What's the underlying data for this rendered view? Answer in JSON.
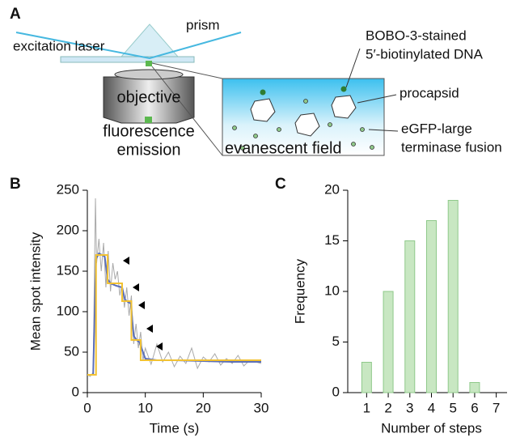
{
  "panel_labels": [
    "A",
    "B",
    "C"
  ],
  "diagram": {
    "prism": "prism",
    "laser": "excitation laser",
    "objective": "objective",
    "emission": [
      "fluorescence",
      "emission"
    ],
    "dna": [
      "BOBO-3-stained",
      "5′-biotinylated DNA"
    ],
    "procapsid": "procapsid",
    "fusion": [
      "eGFP-large",
      "terminase fusion"
    ],
    "field": "evanescent field"
  },
  "chart_data": [
    {
      "type": "line",
      "xlabel": "Time (s)",
      "ylabel": "Mean spot intensity",
      "xlim": [
        0,
        30
      ],
      "ylim": [
        0,
        250
      ],
      "xticks": [
        0,
        10,
        20,
        30
      ],
      "yticks": [
        0,
        50,
        100,
        150,
        200,
        250
      ],
      "series": [
        {
          "color": "#a9a9a9",
          "x": [
            0,
            0.5,
            1,
            1.4,
            1.6,
            2,
            2.4,
            2.8,
            3.2,
            3.6,
            4,
            4.4,
            4.8,
            5.2,
            5.6,
            6,
            6.4,
            6.8,
            7.2,
            7.6,
            8,
            8.4,
            8.8,
            9.2,
            9.6,
            10,
            11,
            12,
            13,
            14,
            15,
            16,
            17,
            18,
            19,
            20,
            21,
            22,
            23,
            24,
            25,
            26,
            27,
            28,
            29,
            30
          ],
          "values": [
            22,
            20,
            25,
            240,
            160,
            190,
            150,
            185,
            130,
            175,
            125,
            160,
            140,
            150,
            120,
            135,
            105,
            130,
            95,
            120,
            60,
            85,
            55,
            75,
            40,
            55,
            35,
            60,
            38,
            50,
            32,
            45,
            36,
            55,
            30,
            44,
            38,
            48,
            34,
            42,
            36,
            46,
            33,
            40,
            38,
            36
          ]
        },
        {
          "color": "#5b6fb9",
          "x": [
            0,
            1,
            1.5,
            2,
            3,
            3.5,
            4,
            5,
            6,
            6.5,
            7,
            7.5,
            8,
            8.5,
            9,
            10,
            12,
            15,
            20,
            25,
            30
          ],
          "values": [
            22,
            22,
            165,
            172,
            168,
            140,
            135,
            132,
            130,
            115,
            112,
            110,
            70,
            65,
            62,
            42,
            40,
            40,
            39,
            38,
            38
          ]
        },
        {
          "color": "#f2c232",
          "x": [
            0,
            1.5,
            1.5,
            3.5,
            3.5,
            6,
            6,
            7.6,
            7.6,
            9.2,
            9.2,
            30
          ],
          "values": [
            22,
            22,
            170,
            170,
            135,
            135,
            113,
            113,
            65,
            65,
            40,
            40
          ]
        }
      ]
    },
    {
      "type": "bar",
      "xlabel": "Number of steps",
      "ylabel": "Frequency",
      "categories": [
        "1",
        "2",
        "3",
        "4",
        "5",
        "6",
        "7"
      ],
      "values": [
        3,
        10,
        15,
        17,
        19,
        1,
        0
      ],
      "color": "#c8e7c2",
      "ylim": [
        0,
        20
      ],
      "yticks": [
        0,
        5,
        10,
        15,
        20
      ]
    }
  ]
}
